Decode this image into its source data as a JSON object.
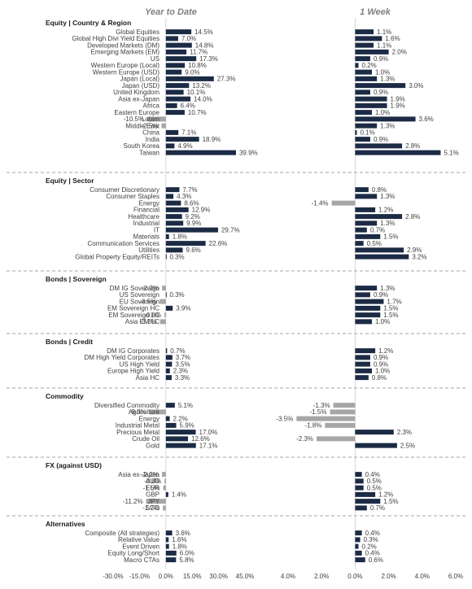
{
  "chart_data": {
    "type": "bar",
    "orientation": "horizontal",
    "grid": false,
    "panels": [
      {
        "title": "Year to Date",
        "xlim": [
          -30,
          45
        ],
        "ticks": [
          "-30.0%",
          "-15.0%",
          "0.0%",
          "15.0%",
          "30.0%",
          "45.0%"
        ],
        "tick_values": [
          -30,
          -15,
          0,
          15,
          30,
          45
        ]
      },
      {
        "title": "1 Week",
        "xlim": [
          -4,
          6
        ],
        "ticks": [
          "4.0%",
          "2.0%",
          "0.0%",
          "2.0%",
          "4.0%",
          "6.0%"
        ],
        "tick_values": [
          -4,
          -2,
          0,
          2,
          4,
          6
        ]
      }
    ],
    "colors": {
      "positive": "#1c2b45",
      "negative": "#a6a6a6",
      "separator": "#a6a6a6"
    },
    "sections": [
      {
        "title": "Equity | Country & Region",
        "rows": [
          {
            "label": "Global Equities",
            "ytd": 14.5,
            "ytd_label": "14.5%",
            "wk": 1.1,
            "wk_label": "1.1%"
          },
          {
            "label": "Global High Divi Yield Equities",
            "ytd": 7.0,
            "ytd_label": "7.0%",
            "wk": 1.6,
            "wk_label": "1.6%"
          },
          {
            "label": "Developed Markets (DM)",
            "ytd": 14.8,
            "ytd_label": "14.8%",
            "wk": 1.1,
            "wk_label": "1.1%"
          },
          {
            "label": "Emerging Markets (EM)",
            "ytd": 11.7,
            "ytd_label": "11.7%",
            "wk": 2.0,
            "wk_label": "2.0%"
          },
          {
            "label": "US",
            "ytd": 17.3,
            "ytd_label": "17.3%",
            "wk": 0.9,
            "wk_label": "0.9%"
          },
          {
            "label": "Western Europe (Local)",
            "ytd": 10.8,
            "ytd_label": "10.8%",
            "wk": 0.2,
            "wk_label": "0.2%"
          },
          {
            "label": "Western Europe (USD)",
            "ytd": 9.0,
            "ytd_label": "9.0%",
            "wk": 1.0,
            "wk_label": "1.0%"
          },
          {
            "label": "Japan (Local)",
            "ytd": 27.3,
            "ytd_label": "27.3%",
            "wk": 1.3,
            "wk_label": "1.3%"
          },
          {
            "label": "Japan (USD)",
            "ytd": 13.2,
            "ytd_label": "13.2%",
            "wk": 3.0,
            "wk_label": "3.0%"
          },
          {
            "label": "United Kingdom",
            "ytd": 10.1,
            "ytd_label": "10.1%",
            "wk": 0.9,
            "wk_label": "0.9%"
          },
          {
            "label": "Asia ex-Japan",
            "ytd": 14.0,
            "ytd_label": "14.0%",
            "wk": 1.9,
            "wk_label": "1.9%"
          },
          {
            "label": "Africa",
            "ytd": 6.4,
            "ytd_label": "6.4%",
            "wk": 1.9,
            "wk_label": "1.9%"
          },
          {
            "label": "Eastern Europe",
            "ytd": 10.7,
            "ytd_label": "10.7%",
            "wk": 1.0,
            "wk_label": "1.0%"
          },
          {
            "label": "Latam",
            "ytd": -10.5,
            "ytd_label": "-10.5%",
            "wk": 3.6,
            "wk_label": "3.6%"
          },
          {
            "label": "Middle East",
            "ytd": -2.5,
            "ytd_label": "-2.5%",
            "wk": 1.3,
            "wk_label": "1.3%"
          },
          {
            "label": "China",
            "ytd": 7.1,
            "ytd_label": "7.1%",
            "wk": 0.1,
            "wk_label": "0.1%"
          },
          {
            "label": "India",
            "ytd": 18.9,
            "ytd_label": "18.9%",
            "wk": 0.9,
            "wk_label": "0.9%"
          },
          {
            "label": "South Korea",
            "ytd": 4.9,
            "ytd_label": "4.9%",
            "wk": 2.8,
            "wk_label": "2.8%"
          },
          {
            "label": "Taiwan",
            "ytd": 39.9,
            "ytd_label": "39.9%",
            "wk": 5.1,
            "wk_label": "5.1%"
          }
        ]
      },
      {
        "title": "Equity | Sector",
        "rows": [
          {
            "label": "Consumer Discretionary",
            "ytd": 7.7,
            "ytd_label": "7.7%",
            "wk": 0.8,
            "wk_label": "0.8%"
          },
          {
            "label": "Consumer Staples",
            "ytd": 4.3,
            "ytd_label": "4.3%",
            "wk": 1.3,
            "wk_label": "1.3%"
          },
          {
            "label": "Energy",
            "ytd": 8.6,
            "ytd_label": "8.6%",
            "wk": -1.4,
            "wk_label": "-1.4%"
          },
          {
            "label": "Financial",
            "ytd": 12.9,
            "ytd_label": "12.9%",
            "wk": 1.2,
            "wk_label": "1.2%"
          },
          {
            "label": "Healthcare",
            "ytd": 9.2,
            "ytd_label": "9.2%",
            "wk": 2.8,
            "wk_label": "2.8%"
          },
          {
            "label": "Industrial",
            "ytd": 9.9,
            "ytd_label": "9.9%",
            "wk": 1.3,
            "wk_label": "1.3%"
          },
          {
            "label": "IT",
            "ytd": 29.7,
            "ytd_label": "29.7%",
            "wk": 0.7,
            "wk_label": "0.7%"
          },
          {
            "label": "Materials",
            "ytd": 1.8,
            "ytd_label": "1.8%",
            "wk": 1.5,
            "wk_label": "1.5%"
          },
          {
            "label": "Communication Services",
            "ytd": 22.6,
            "ytd_label": "22.6%",
            "wk": 0.5,
            "wk_label": "0.5%"
          },
          {
            "label": "Utilities",
            "ytd": 9.6,
            "ytd_label": "9.6%",
            "wk": 2.9,
            "wk_label": "2.9%"
          },
          {
            "label": "Global Property Equity/REITs",
            "ytd": 0.3,
            "ytd_label": "0.3%",
            "wk": 3.2,
            "wk_label": "3.2%"
          }
        ]
      },
      {
        "title": "Bonds | Sovereign",
        "rows": [
          {
            "label": "DM IG Sovereign",
            "ytd": -2.2,
            "ytd_label": "-2.2%",
            "wk": 1.3,
            "wk_label": "1.3%"
          },
          {
            "label": "US Sovereign",
            "ytd": 0.3,
            "ytd_label": "0.3%",
            "wk": 0.9,
            "wk_label": "0.9%"
          },
          {
            "label": "EU Sovereign",
            "ytd": -3.5,
            "ytd_label": "-3.5%",
            "wk": 1.7,
            "wk_label": "1.7%"
          },
          {
            "label": "EM Sovereign HC",
            "ytd": 3.9,
            "ytd_label": "3.9%",
            "wk": 1.5,
            "wk_label": "1.5%"
          },
          {
            "label": "EM Sovereign LC",
            "ytd": -0.8,
            "ytd_label": "-0.8%",
            "wk": 1.5,
            "wk_label": "1.5%"
          },
          {
            "label": "Asia EM LC",
            "ytd": -3.3,
            "ytd_label": "-3.3%",
            "wk": 1.0,
            "wk_label": "1.0%"
          }
        ]
      },
      {
        "title": "Bonds | Credit",
        "rows": [
          {
            "label": "DM IG Corporates",
            "ytd": 0.7,
            "ytd_label": "0.7%",
            "wk": 1.2,
            "wk_label": "1.2%"
          },
          {
            "label": "DM High Yield Corporates",
            "ytd": 3.7,
            "ytd_label": "3.7%",
            "wk": 0.9,
            "wk_label": "0.9%"
          },
          {
            "label": "US High Yield",
            "ytd": 3.5,
            "ytd_label": "3.5%",
            "wk": 0.9,
            "wk_label": "0.9%"
          },
          {
            "label": "Europe High Yield",
            "ytd": 2.3,
            "ytd_label": "2.3%",
            "wk": 1.0,
            "wk_label": "1.0%"
          },
          {
            "label": "Asia HC",
            "ytd": 3.3,
            "ytd_label": "3.3%",
            "wk": 0.8,
            "wk_label": "0.8%"
          }
        ]
      },
      {
        "title": "Commodity",
        "rows": [
          {
            "label": "Diversified Commodity",
            "ytd": 5.1,
            "ytd_label": "5.1%",
            "wk": -1.3,
            "wk_label": "-1.3%"
          },
          {
            "label": "Agriculture",
            "ytd": -9.3,
            "ytd_label": "-9.3%",
            "wk": -1.5,
            "wk_label": "-1.5%"
          },
          {
            "label": "Energy",
            "ytd": 2.2,
            "ytd_label": "2.2%",
            "wk": -3.5,
            "wk_label": "-3.5%"
          },
          {
            "label": "Industrial Metal",
            "ytd": 5.9,
            "ytd_label": "5.9%",
            "wk": -1.8,
            "wk_label": "-1.8%"
          },
          {
            "label": "Precious Metal",
            "ytd": 17.0,
            "ytd_label": "17.0%",
            "wk": 2.3,
            "wk_label": "2.3%"
          },
          {
            "label": "Crude Oil",
            "ytd": 12.6,
            "ytd_label": "12.6%",
            "wk": -2.3,
            "wk_label": "-2.3%"
          },
          {
            "label": "Gold",
            "ytd": 17.1,
            "ytd_label": "17.1%",
            "wk": 2.5,
            "wk_label": "2.5%"
          }
        ]
      },
      {
        "title": "FX (against USD)",
        "rows": [
          {
            "label": "Asia ex-Japan",
            "ytd": -2.2,
            "ytd_label": "-2.2%",
            "wk": 0.4,
            "wk_label": "0.4%"
          },
          {
            "label": "AUD",
            "ytd": -0.8,
            "ytd_label": "-0.8%",
            "wk": 0.5,
            "wk_label": "0.5%"
          },
          {
            "label": "EUR",
            "ytd": -1.5,
            "ytd_label": "-1.5%",
            "wk": 0.5,
            "wk_label": "0.5%"
          },
          {
            "label": "GBP",
            "ytd": 1.4,
            "ytd_label": "1.4%",
            "wk": 1.2,
            "wk_label": "1.2%"
          },
          {
            "label": "JPY",
            "ytd": -11.2,
            "ytd_label": "-11.2%",
            "wk": 1.5,
            "wk_label": "1.5%"
          },
          {
            "label": "SGD",
            "ytd": -1.7,
            "ytd_label": "-1.7%",
            "wk": 0.7,
            "wk_label": "0.7%"
          }
        ]
      },
      {
        "title": "Alternatives",
        "rows": [
          {
            "label": "Composite (All strategies)",
            "ytd": 3.6,
            "ytd_label": "3.6%",
            "wk": 0.4,
            "wk_label": "0.4%"
          },
          {
            "label": "Relative Value",
            "ytd": 1.6,
            "ytd_label": "1.6%",
            "wk": 0.3,
            "wk_label": "0.3%"
          },
          {
            "label": "Event Driven",
            "ytd": 1.8,
            "ytd_label": "1.8%",
            "wk": 0.2,
            "wk_label": "0.2%"
          },
          {
            "label": "Equity Long/Short",
            "ytd": 6.0,
            "ytd_label": "6.0%",
            "wk": 0.4,
            "wk_label": "0.4%"
          },
          {
            "label": "Macro CTAs",
            "ytd": 5.8,
            "ytd_label": "5.8%",
            "wk": 0.6,
            "wk_label": "0.6%"
          }
        ]
      }
    ]
  }
}
